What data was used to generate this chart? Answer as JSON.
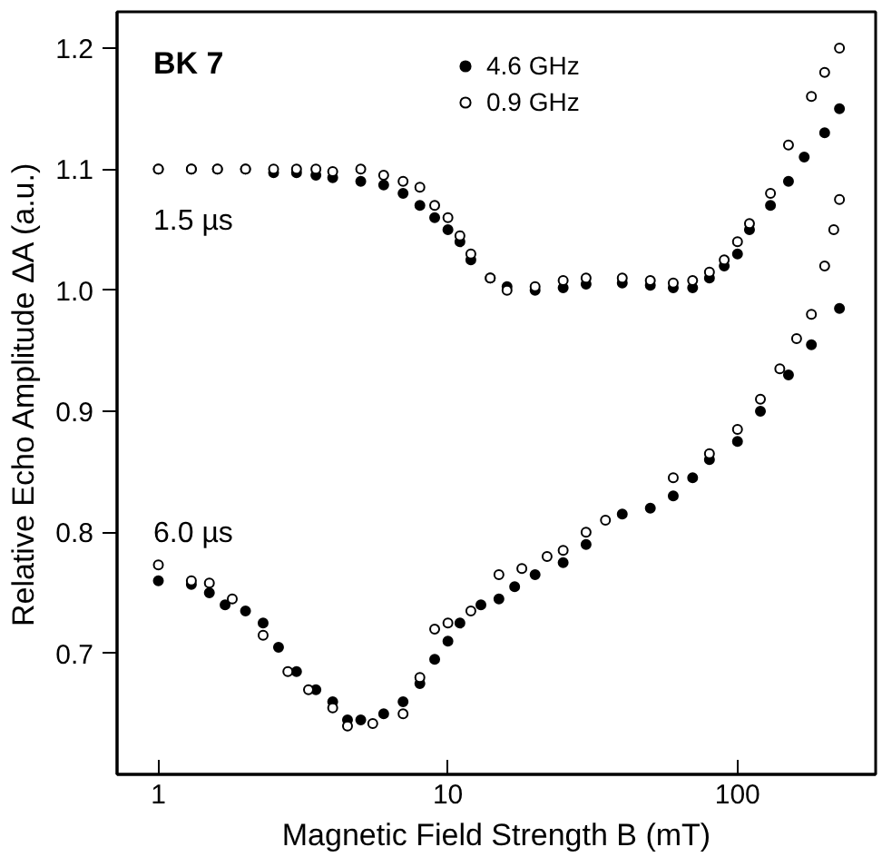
{
  "chart_data": {
    "type": "scatter",
    "xlabel": "Magnetic Field Strength B (mT)",
    "ylabel": "Relative Echo Amplitude ΔA (a.u.)",
    "log": "x",
    "xlim": [
      0.72,
      300
    ],
    "xticks": [
      1,
      10,
      100
    ],
    "ylim": [
      0.6,
      1.23
    ],
    "yticks": [
      0.7,
      0.8,
      0.9,
      {
        "value": 1.0,
        "label": "1.0"
      },
      1.1,
      1.2
    ],
    "grid": false,
    "legend": "top",
    "annotations": [
      "BK 7",
      "1.5 µs",
      "6.0 µs"
    ],
    "series": [
      {
        "name": "4.6 GHz",
        "color": "#000000",
        "marker": "circle",
        "x": [
          1,
          1.3,
          1.6,
          2,
          2.5,
          3,
          3.5,
          4,
          5,
          6,
          7,
          8,
          9,
          10,
          11,
          12,
          14,
          16,
          20,
          25,
          30,
          40,
          50,
          60,
          70,
          80,
          90,
          100,
          110,
          130,
          150,
          170,
          200,
          225,
          1,
          1.3,
          1.5,
          1.7,
          2,
          2.3,
          2.6,
          3,
          3.5,
          4,
          4.5,
          5,
          6,
          7,
          8,
          9,
          10,
          11,
          13,
          15,
          17,
          20,
          25,
          30,
          40,
          50,
          60,
          70,
          80,
          100,
          120,
          150,
          180,
          225
        ],
        "values": [
          1.1,
          1.1,
          1.1,
          1.1,
          1.097,
          1.097,
          1.095,
          1.093,
          1.09,
          1.087,
          1.08,
          1.07,
          1.06,
          1.05,
          1.04,
          1.025,
          1.01,
          1.003,
          1.0,
          1.002,
          1.005,
          1.006,
          1.004,
          1.002,
          1.002,
          1.01,
          1.02,
          1.03,
          1.05,
          1.07,
          1.09,
          1.11,
          1.13,
          1.15,
          0.76,
          0.757,
          0.75,
          0.74,
          0.735,
          0.725,
          0.705,
          0.685,
          0.67,
          0.66,
          0.645,
          0.645,
          0.65,
          0.66,
          0.675,
          0.695,
          0.71,
          0.725,
          0.74,
          0.745,
          0.755,
          0.765,
          0.775,
          0.79,
          0.815,
          0.82,
          0.83,
          0.845,
          0.86,
          0.875,
          0.9,
          0.93,
          0.955,
          0.985
        ]
      },
      {
        "name": "0.9 GHz",
        "color": "#000000",
        "marker": "circle open",
        "x": [
          1,
          1.3,
          1.6,
          2,
          2.5,
          3,
          3.5,
          4,
          5,
          6,
          7,
          8,
          9,
          10,
          11,
          12,
          14,
          16,
          20,
          25,
          30,
          40,
          50,
          60,
          70,
          80,
          90,
          100,
          110,
          130,
          150,
          180,
          200,
          225,
          1,
          1.3,
          1.5,
          1.8,
          2.3,
          2.8,
          3.3,
          4,
          4.5,
          5.5,
          7,
          8,
          9,
          10,
          12,
          15,
          18,
          22,
          25,
          30,
          35,
          60,
          80,
          100,
          120,
          140,
          160,
          180,
          200,
          215,
          225
        ],
        "values": [
          1.1,
          1.1,
          1.1,
          1.1,
          1.1,
          1.1,
          1.1,
          1.098,
          1.1,
          1.095,
          1.09,
          1.085,
          1.07,
          1.06,
          1.045,
          1.03,
          1.01,
          1.0,
          1.003,
          1.008,
          1.01,
          1.01,
          1.008,
          1.006,
          1.008,
          1.015,
          1.025,
          1.04,
          1.055,
          1.08,
          1.12,
          1.16,
          1.18,
          1.2,
          0.773,
          0.76,
          0.758,
          0.745,
          0.715,
          0.685,
          0.67,
          0.655,
          0.64,
          0.642,
          0.65,
          0.68,
          0.72,
          0.725,
          0.735,
          0.765,
          0.77,
          0.78,
          0.785,
          0.8,
          0.81,
          0.845,
          0.865,
          0.885,
          0.91,
          0.935,
          0.96,
          0.98,
          1.02,
          1.05,
          1.075
        ]
      }
    ]
  }
}
